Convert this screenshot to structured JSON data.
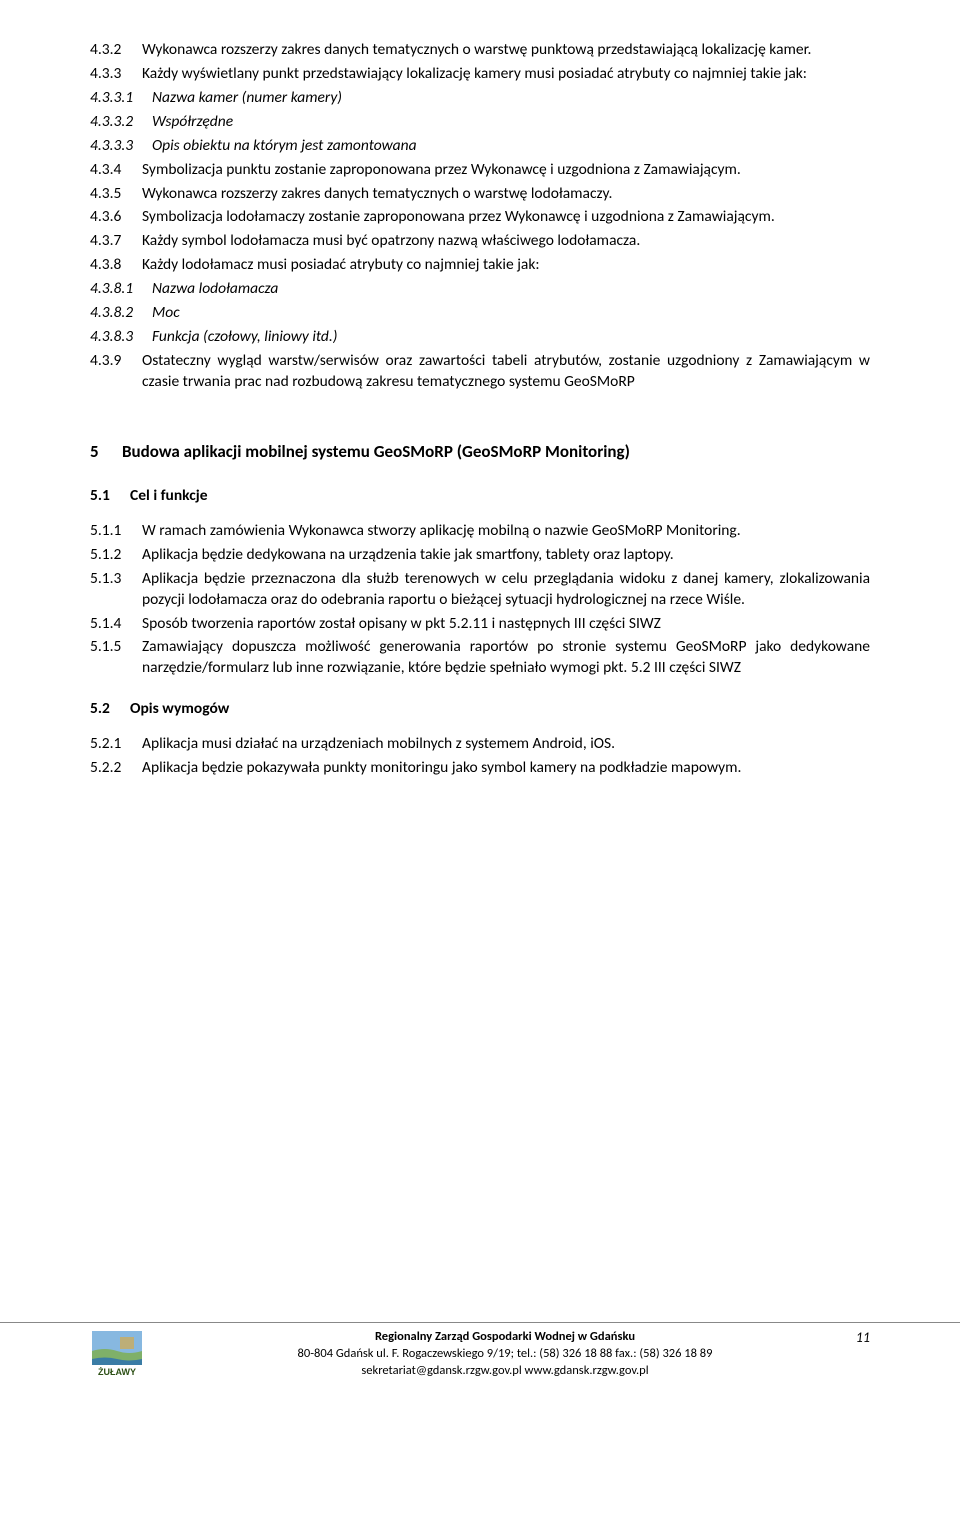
{
  "colors": {
    "text": "#000000",
    "background": "#ffffff",
    "footer_border": "#888888",
    "logo_sky": "#87b8e0",
    "logo_grass": "#7fb069",
    "logo_water": "#3a7ca5",
    "logo_text": "#2d5016",
    "logo_accent": "#d4a94a"
  },
  "typography": {
    "body_font": "Calibri, Arial, sans-serif",
    "body_size_pt": 11.5,
    "heading_size_pt": 13,
    "footer_size_pt": 9.5
  },
  "body_items": [
    {
      "num": "4.3.2",
      "w": "w52",
      "text": "Wykonawca rozszerzy zakres danych tematycznych o warstwę punktową przedstawiającą lokalizację kamer."
    },
    {
      "num": "4.3.3",
      "w": "w52",
      "text": "Każdy wyświetlany punkt przedstawiający lokalizację kamery musi posiadać atrybuty co najmniej takie jak:"
    },
    {
      "num": "4.3.3.1",
      "w": "w62",
      "italic": true,
      "text": "Nazwa kamer (numer kamery)"
    },
    {
      "num": "4.3.3.2",
      "w": "w62",
      "italic": true,
      "text": "Współrzędne"
    },
    {
      "num": "4.3.3.3",
      "w": "w62",
      "italic": true,
      "text": "Opis obiektu na którym jest zamontowana"
    },
    {
      "num": "4.3.4",
      "w": "w52",
      "text": "Symbolizacja punktu zostanie zaproponowana przez Wykonawcę i uzgodniona z Zamawiającym."
    },
    {
      "num": "4.3.5",
      "w": "w52",
      "text": "Wykonawca rozszerzy zakres danych tematycznych o warstwę lodołamaczy."
    },
    {
      "num": "4.3.6",
      "w": "w52",
      "text": "Symbolizacja lodołamaczy zostanie zaproponowana przez Wykonawcę i uzgodniona z Zamawiającym."
    },
    {
      "num": "4.3.7",
      "w": "w52",
      "text": "Każdy symbol lodołamacza musi być opatrzony nazwą właściwego lodołamacza."
    },
    {
      "num": "4.3.8",
      "w": "w52",
      "text": "Każdy lodołamacz musi posiadać atrybuty co najmniej takie jak:"
    },
    {
      "num": "4.3.8.1",
      "w": "w62",
      "italic": true,
      "text": "Nazwa lodołamacza"
    },
    {
      "num": "4.3.8.2",
      "w": "w62",
      "italic": true,
      "text": "Moc"
    },
    {
      "num": "4.3.8.3",
      "w": "w62",
      "italic": true,
      "text": "Funkcja (czołowy, liniowy itd.)"
    },
    {
      "num": "4.3.9",
      "w": "w52",
      "text": "Ostateczny wygląd warstw/serwisów oraz zawartości tabeli atrybutów, zostanie uzgodniony z Zamawiającym w czasie trwania prac nad rozbudową zakresu tematycznego systemu GeoSMoRP"
    }
  ],
  "section5": {
    "num": "5",
    "title": "Budowa aplikacji mobilnej systemu GeoSMoRP (GeoSMoRP Monitoring)"
  },
  "section5_1": {
    "num": "5.1",
    "title": "Cel i funkcje",
    "items": [
      {
        "num": "5.1.1",
        "text": "W ramach zamówienia Wykonawca stworzy aplikację mobilną o nazwie GeoSMoRP Monitoring."
      },
      {
        "num": "5.1.2",
        "text": "Aplikacja będzie dedykowana na urządzenia takie jak smartfony, tablety oraz laptopy."
      },
      {
        "num": "5.1.3",
        "text": "Aplikacja będzie przeznaczona dla służb terenowych w celu przeglądania widoku z danej kamery, zlokalizowania pozycji lodołamacza oraz do odebrania raportu o bieżącej sytuacji hydrologicznej na rzece Wiśle."
      },
      {
        "num": "5.1.4",
        "text": "Sposób tworzenia raportów został opisany w pkt 5.2.11 i następnych III części SIWZ"
      },
      {
        "num": "5.1.5",
        "text": "Zamawiający dopuszcza możliwość generowania raportów po stronie systemu GeoSMoRP jako dedykowane narzędzie/formularz lub inne rozwiązanie, które będzie spełniało wymogi pkt. 5.2 III części SIWZ"
      }
    ]
  },
  "section5_2": {
    "num": "5.2",
    "title": "Opis wymogów",
    "items": [
      {
        "num": "5.2.1",
        "text": "Aplikacja musi działać na urządzeniach mobilnych z systemem Android, iOS."
      },
      {
        "num": "5.2.2",
        "text": "Aplikacja będzie pokazywała punkty monitoringu jako symbol kamery na podkładzie mapowym."
      }
    ]
  },
  "footer": {
    "logo_text": "ŻUŁAWY",
    "line1": "Regionalny Zarząd Gospodarki Wodnej w Gdańsku",
    "line2": "80-804 Gdańsk ul. F. Rogaczewskiego 9/19; tel.: (58) 326 18 88 fax.: (58) 326 18 89",
    "line3": "sekretariat@gdansk.rzgw.gov.pl www.gdansk.rzgw.gov.pl",
    "page_number": "11"
  }
}
